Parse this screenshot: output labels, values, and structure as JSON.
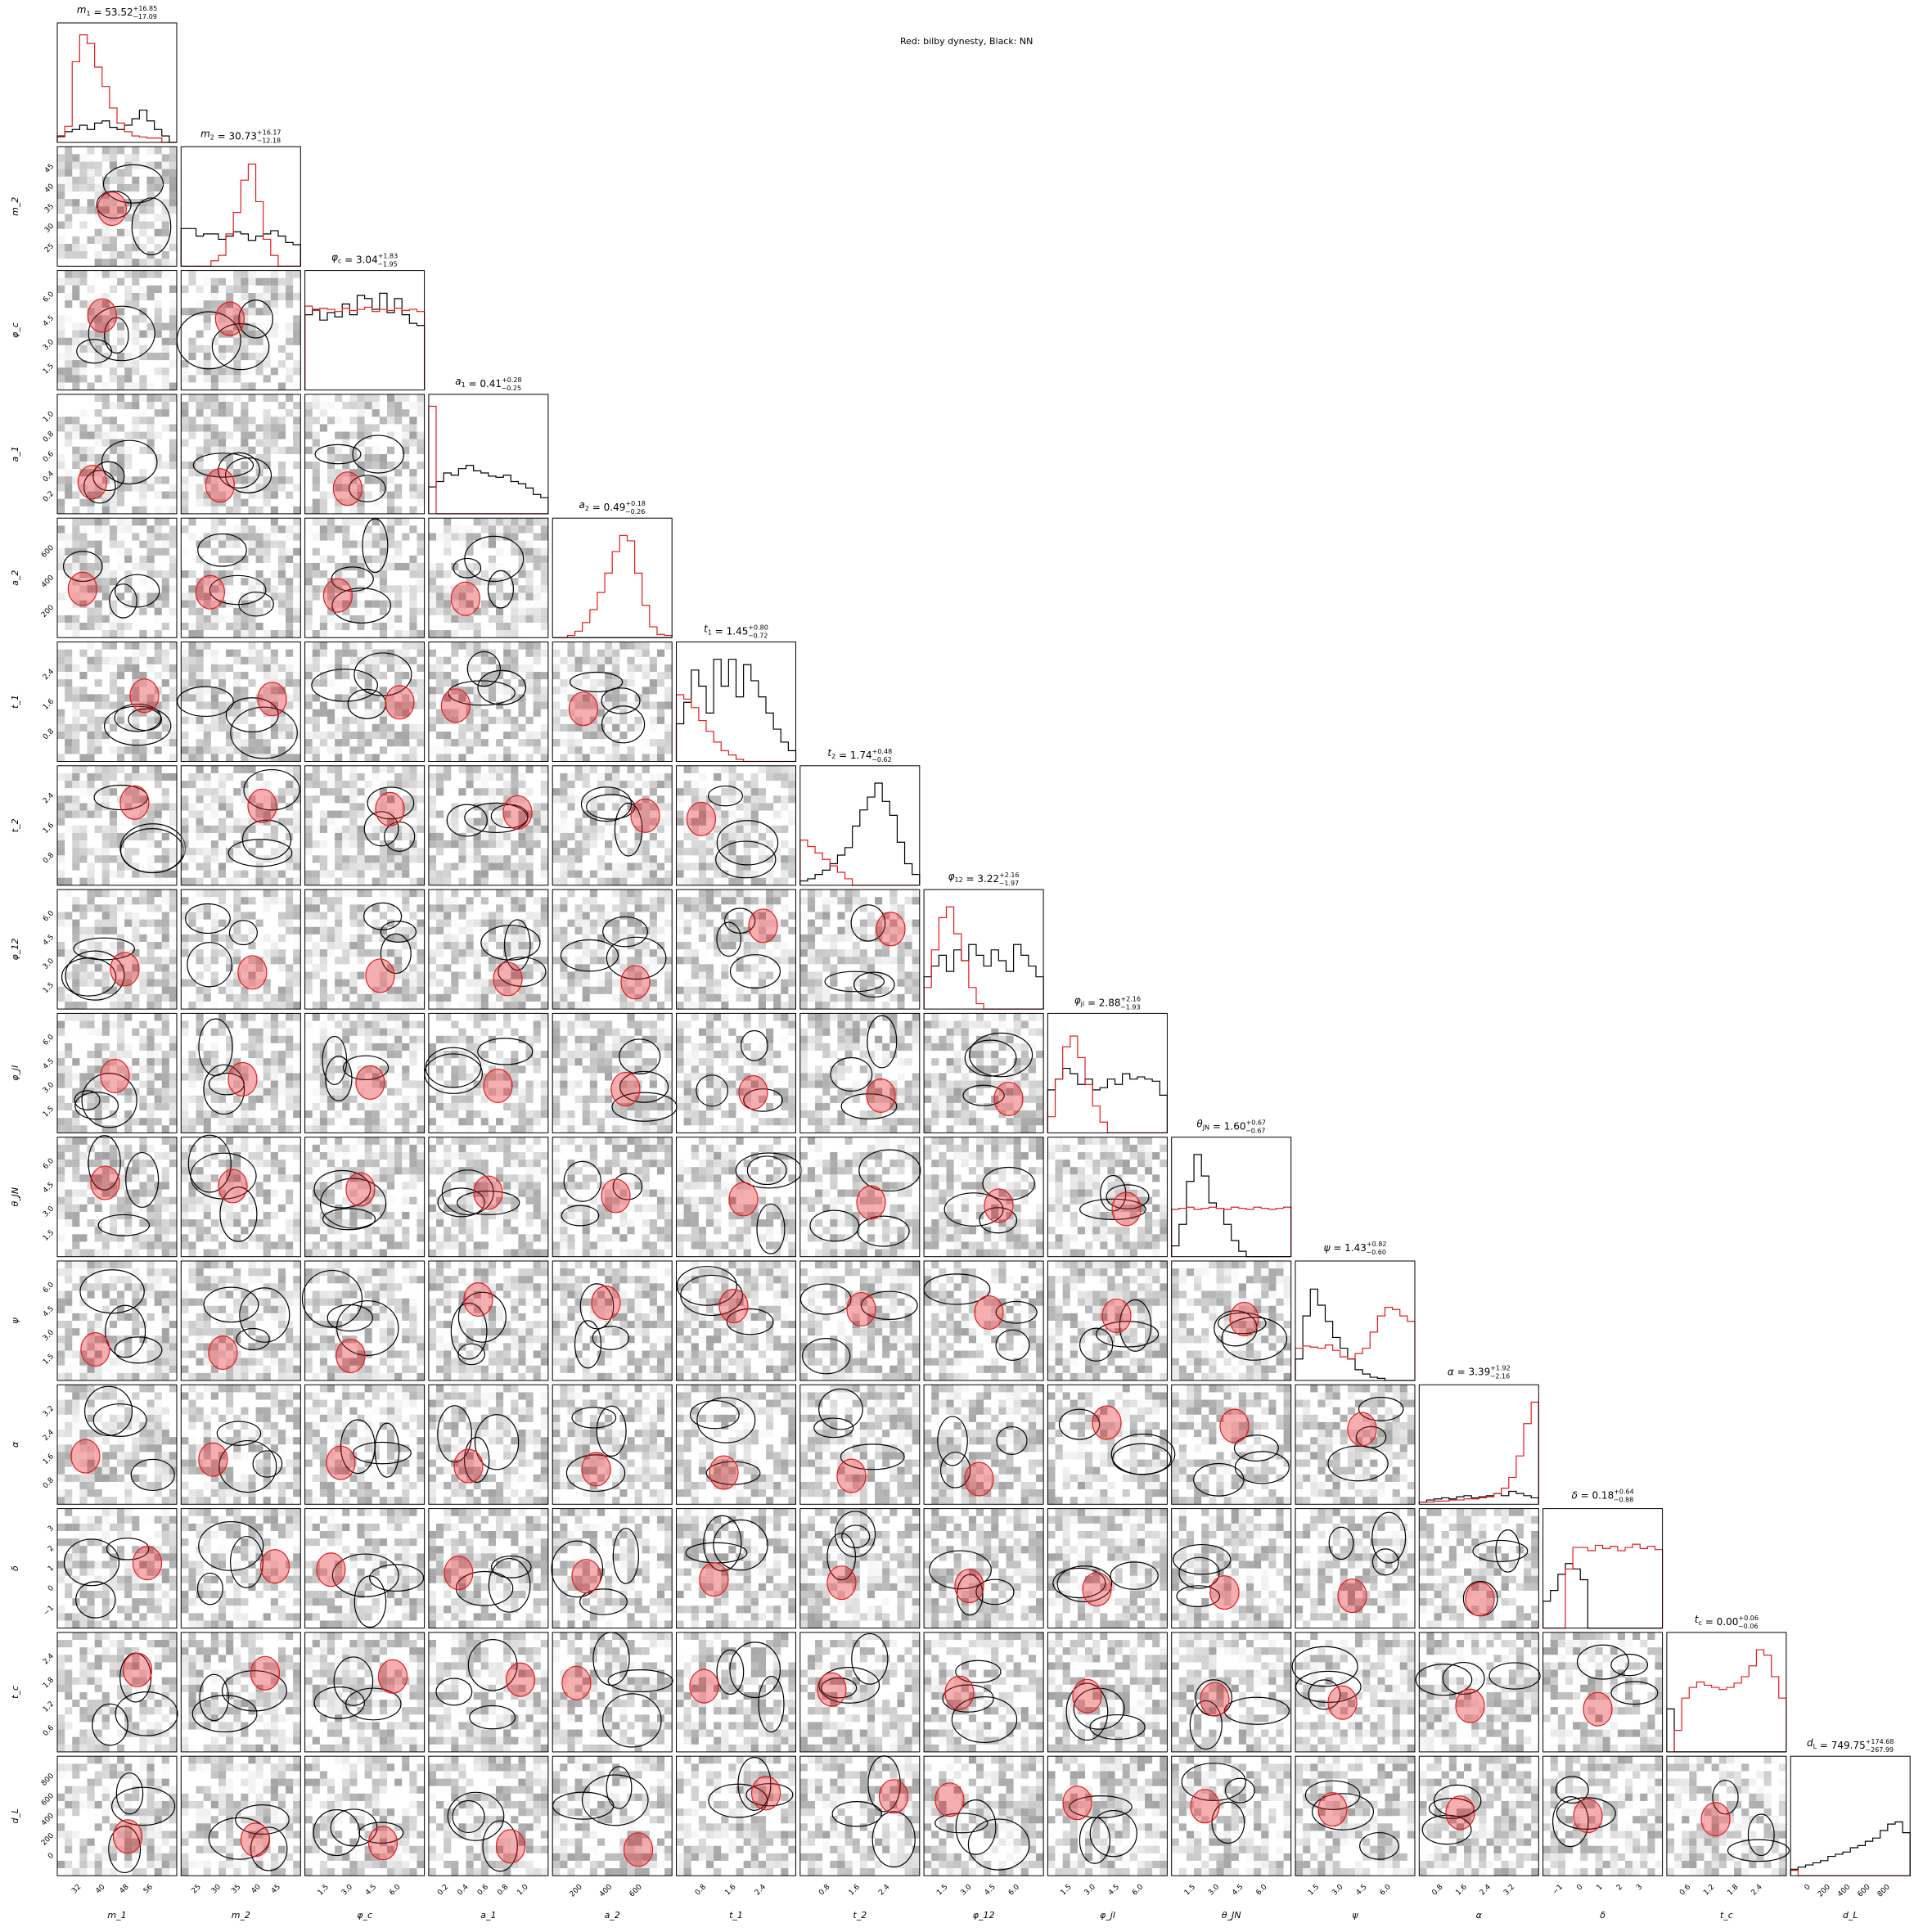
{
  "figure_title": "Red: bilby dynesty, Black: NN",
  "chart_data": {
    "type": "corner",
    "legend": {
      "text": "Red: bilby dynesty, Black: NN",
      "placement": "top-center"
    },
    "series": [
      {
        "name": "bilby dynesty",
        "color": "#e41a1c"
      },
      {
        "name": "NN",
        "color": "#000000"
      }
    ],
    "parameters": [
      {
        "label": "m_1",
        "title": {
          "sym": "m",
          "sub": "1",
          "value": "53.52",
          "plus": "16.85",
          "minus": "17.09"
        },
        "range": [
          28,
          60
        ],
        "ticks": [
          32,
          40,
          48,
          56
        ]
      },
      {
        "label": "m_2",
        "title": {
          "sym": "m",
          "sub": "2",
          "value": "30.73",
          "plus": "16.17",
          "minus": "12.18"
        },
        "range": [
          20,
          46
        ],
        "ticks": [
          25,
          30,
          35,
          40,
          45
        ]
      },
      {
        "label": "φ_c",
        "title": {
          "sym": "φ",
          "sub": "c",
          "value": "3.04",
          "plus": "1.83",
          "minus": "1.95"
        },
        "range": [
          0,
          6.28
        ],
        "ticks": [
          "1.5",
          "3.0",
          "4.5",
          "6.0"
        ]
      },
      {
        "label": "a_1",
        "title": {
          "sym": "a",
          "sub": "1",
          "value": "0.41",
          "plus": "0.28",
          "minus": "0.25"
        },
        "range": [
          0,
          1
        ],
        "ticks": [
          "0.2",
          "0.4",
          "0.6",
          "0.8",
          "1.0"
        ]
      },
      {
        "label": "a_2",
        "title": {
          "sym": "a",
          "sub": "2",
          "value": "0.49",
          "plus": "0.18",
          "minus": "0.26"
        },
        "range": [
          0,
          800
        ],
        "ticks": [
          200,
          400,
          600
        ]
      },
      {
        "label": "t_1",
        "title": {
          "sym": "t",
          "sub": "1",
          "value": "1.45",
          "plus": "0.80",
          "minus": "0.72"
        },
        "range": [
          0,
          3.14
        ],
        "ticks": [
          "0.8",
          "1.6",
          "2.4"
        ]
      },
      {
        "label": "t_2",
        "title": {
          "sym": "t",
          "sub": "2",
          "value": "1.74",
          "plus": "0.48",
          "minus": "0.62"
        },
        "range": [
          0,
          3.14
        ],
        "ticks": [
          "0.8",
          "1.6",
          "2.4"
        ]
      },
      {
        "label": "φ_12",
        "title": {
          "sym": "φ",
          "sub": "12",
          "value": "3.22",
          "plus": "2.16",
          "minus": "1.97"
        },
        "range": [
          0,
          6.28
        ],
        "ticks": [
          "1.5",
          "3.0",
          "4.5",
          "6.0"
        ]
      },
      {
        "label": "φ_jl",
        "title": {
          "sym": "φ",
          "sub": "jl",
          "value": "2.88",
          "plus": "2.16",
          "minus": "1.93"
        },
        "range": [
          0,
          6.28
        ],
        "ticks": [
          "1.5",
          "3.0",
          "4.5",
          "6.0"
        ]
      },
      {
        "label": "θ_JN",
        "title": {
          "sym": "θ",
          "sub": "JN",
          "value": "1.60",
          "plus": "0.67",
          "minus": "0.67"
        },
        "range": [
          0,
          6.28
        ],
        "ticks": [
          "1.5",
          "3.0",
          "4.5",
          "6.0"
        ]
      },
      {
        "label": "ψ",
        "title": {
          "sym": "ψ",
          "sub": "",
          "value": "1.43",
          "plus": "0.82",
          "minus": "0.60"
        },
        "range": [
          0,
          6.28
        ],
        "ticks": [
          "1.5",
          "3.0",
          "4.5",
          "6.0"
        ]
      },
      {
        "label": "α",
        "title": {
          "sym": "α",
          "sub": "",
          "value": "3.39",
          "plus": "1.92",
          "minus": "2.16"
        },
        "range": [
          0,
          3.3
        ],
        "ticks": [
          "0.8",
          "1.6",
          "2.4",
          "3.2"
        ]
      },
      {
        "label": "δ",
        "title": {
          "sym": "δ",
          "sub": "",
          "value": "0.18",
          "plus": "0.64",
          "minus": "0.88"
        },
        "range": [
          -1.6,
          3.1
        ],
        "ticks": [
          "−1",
          "0",
          "1",
          "2",
          "3"
        ]
      },
      {
        "label": "t_c",
        "title": {
          "sym": "t",
          "sub": "c",
          "value": "0.00",
          "plus": "0.06",
          "minus": "0.06"
        },
        "range": [
          0,
          2.8
        ],
        "ticks": [
          "0.6",
          "1.2",
          "1.8",
          "2.4"
        ]
      },
      {
        "label": "d_L",
        "title": {
          "sym": "d",
          "sub": "L",
          "value": "749.75",
          "plus": "174.68",
          "minus": "267.99"
        },
        "range": [
          0,
          800
        ],
        "ticks": [
          0,
          200,
          400,
          600,
          800
        ]
      }
    ],
    "y_ticks": {
      "m_2": [
        25,
        30,
        35,
        40,
        45
      ],
      "φ_c": [
        "1.5",
        "3.0",
        "4.5",
        "6.0"
      ],
      "a_1": [
        "0.2",
        "0.4",
        "0.6",
        "0.8",
        "1.0"
      ],
      "a_2": [
        200,
        400,
        600
      ],
      "t_1": [
        "0.8",
        "1.6",
        "2.4"
      ],
      "t_2": [
        "0.8",
        "1.6",
        "2.4"
      ],
      "φ_12": [
        "1.5",
        "3.0",
        "4.5",
        "6.0"
      ],
      "φ_jl": [
        "1.5",
        "3.0",
        "4.5",
        "6.0"
      ],
      "θ_JN": [
        "1.5",
        "3.0",
        "4.5",
        "6.0"
      ],
      "ψ": [
        "1.5",
        "3.0",
        "4.5",
        "6.0"
      ],
      "α": [
        "0.8",
        "1.6",
        "2.4",
        "3.2"
      ],
      "δ": [
        "−1",
        "0",
        "1",
        "2",
        "3"
      ],
      "t_c": [
        "0.6",
        "1.2",
        "1.8",
        "2.4"
      ],
      "d_L": [
        0,
        200,
        400,
        600,
        800
      ]
    },
    "marginal_hist_red": [
      [
        0.05,
        0.15,
        0.75,
        1.0,
        0.92,
        0.7,
        0.52,
        0.32,
        0.18,
        0.1,
        0.06,
        0.05,
        0.04,
        0.04,
        0,
        0
      ],
      [
        0,
        0,
        0,
        0,
        0.05,
        0.1,
        0.3,
        0.5,
        0.8,
        0.95,
        0.6,
        0.25,
        0.1,
        0,
        0,
        0
      ],
      [
        0.78,
        0.74,
        0.76,
        0.75,
        0.73,
        0.76,
        0.74,
        0.75,
        0.77,
        0.73,
        0.75,
        0.74,
        0.76,
        0.74,
        0.75,
        0.73
      ],
      [
        1.0,
        0,
        0,
        0,
        0,
        0,
        0,
        0,
        0,
        0,
        0,
        0,
        0,
        0,
        0,
        0
      ],
      [
        0,
        0,
        0.02,
        0.06,
        0.14,
        0.26,
        0.42,
        0.6,
        0.8,
        0.95,
        0.9,
        0.6,
        0.3,
        0.1,
        0.03,
        0.02
      ],
      [
        0.62,
        0.58,
        0.5,
        0.38,
        0.28,
        0.18,
        0.1,
        0.06,
        0.02,
        0,
        0,
        0,
        0,
        0,
        0,
        0
      ],
      [
        0.42,
        0.36,
        0.3,
        0.24,
        0.18,
        0.12,
        0.06,
        0,
        0,
        0,
        0,
        0,
        0,
        0,
        0,
        0
      ],
      [
        0.2,
        0.55,
        0.85,
        0.95,
        0.7,
        0.45,
        0.2,
        0.05,
        0,
        0,
        0,
        0,
        0,
        0,
        0,
        0
      ],
      [
        0.15,
        0.5,
        0.8,
        0.9,
        0.7,
        0.45,
        0.25,
        0.1,
        0,
        0,
        0,
        0,
        0,
        0,
        0,
        0
      ],
      [
        0.44,
        0.45,
        0.46,
        0.44,
        0.45,
        0.46,
        0.45,
        0.44,
        0.46,
        0.45,
        0.44,
        0.46,
        0.45,
        0.44,
        0.45,
        0.46
      ],
      [
        0.3,
        0.32,
        0.31,
        0.3,
        0.33,
        0.28,
        0.22,
        0.2,
        0.25,
        0.3,
        0.45,
        0.6,
        0.68,
        0.66,
        0.6,
        0.55
      ],
      [
        0.02,
        0.02,
        0.03,
        0.03,
        0.04,
        0.04,
        0.05,
        0.05,
        0.06,
        0.07,
        0.1,
        0.15,
        0.25,
        0.45,
        0.75,
        0.95
      ],
      [
        0,
        0,
        0,
        0.55,
        0.75,
        0.75,
        0.72,
        0.77,
        0.74,
        0.76,
        0.72,
        0.75,
        0.78,
        0.74,
        0.76,
        0.73
      ],
      [
        0,
        0.2,
        0.5,
        0.6,
        0.65,
        0.62,
        0.6,
        0.58,
        0.6,
        0.64,
        0.7,
        0.8,
        0.95,
        0.9,
        0.7,
        0.5
      ],
      [
        0.05,
        0,
        0,
        0,
        0,
        0,
        0,
        0,
        0,
        0,
        0,
        0,
        0,
        0,
        0,
        0
      ]
    ],
    "marginal_hist_black": [
      [
        0.06,
        0.1,
        0.12,
        0.16,
        0.12,
        0.18,
        0.2,
        0.14,
        0.12,
        0.16,
        0.22,
        0.3,
        0.2,
        0.12,
        0.06,
        0
      ],
      [
        0.35,
        0.35,
        0.28,
        0.3,
        0.3,
        0.25,
        0.28,
        0.32,
        0.3,
        0.24,
        0.28,
        0.3,
        0.33,
        0.28,
        0.22,
        0.2
      ],
      [
        0.7,
        0.75,
        0.65,
        0.72,
        0.68,
        0.8,
        0.7,
        0.88,
        0.85,
        0.75,
        0.9,
        0.72,
        0.85,
        0.7,
        0.62,
        0.6
      ],
      [
        0.25,
        0.3,
        0.38,
        0.36,
        0.42,
        0.45,
        0.4,
        0.38,
        0.35,
        0.34,
        0.36,
        0.3,
        0.28,
        0.24,
        0.18,
        0.15
      ],
      [
        0,
        0,
        0,
        0,
        0,
        0,
        0,
        0,
        0,
        0,
        0,
        0,
        0,
        0,
        0,
        0
      ],
      [
        0.35,
        0.55,
        0.85,
        0.7,
        0.45,
        0.95,
        0.7,
        0.95,
        0.6,
        0.9,
        0.75,
        0.6,
        0.45,
        0.3,
        0.18,
        0.1
      ],
      [
        0.04,
        0.06,
        0.1,
        0.14,
        0.2,
        0.28,
        0.35,
        0.55,
        0.7,
        0.82,
        0.95,
        0.78,
        0.65,
        0.4,
        0.2,
        0.1
      ],
      [
        0.3,
        0.4,
        0.5,
        0.35,
        0.55,
        0.45,
        0.6,
        0.5,
        0.4,
        0.55,
        0.45,
        0.35,
        0.6,
        0.5,
        0.4,
        0.3
      ],
      [
        0.4,
        0.5,
        0.6,
        0.55,
        0.45,
        0.5,
        0.4,
        0.42,
        0.5,
        0.45,
        0.55,
        0.5,
        0.52,
        0.5,
        0.48,
        0.35
      ],
      [
        0.1,
        0.3,
        0.7,
        0.95,
        0.75,
        0.5,
        0.45,
        0.3,
        0.15,
        0.05,
        0,
        0,
        0,
        0,
        0,
        0
      ],
      [
        0.2,
        0.6,
        0.85,
        0.7,
        0.55,
        0.4,
        0.3,
        0.2,
        0.1,
        0.06,
        0.03,
        0.02,
        0,
        0,
        0,
        0
      ],
      [
        0.02,
        0.04,
        0.05,
        0.06,
        0.05,
        0.07,
        0.08,
        0.06,
        0.07,
        0.08,
        0.1,
        0.08,
        0.12,
        0.1,
        0.08,
        0.06
      ],
      [
        0.25,
        0.35,
        0.5,
        0.6,
        0.55,
        0.45,
        0,
        0,
        0,
        0,
        0,
        0,
        0,
        0,
        0,
        0
      ],
      [
        0.4,
        0,
        0,
        0,
        0,
        0,
        0,
        0,
        0,
        0,
        0,
        0,
        0,
        0,
        0,
        0
      ],
      [
        0.06,
        0.08,
        0.1,
        0.12,
        0.14,
        0.18,
        0.2,
        0.22,
        0.26,
        0.28,
        0.32,
        0.35,
        0.42,
        0.48,
        0.5,
        0.4
      ]
    ]
  }
}
